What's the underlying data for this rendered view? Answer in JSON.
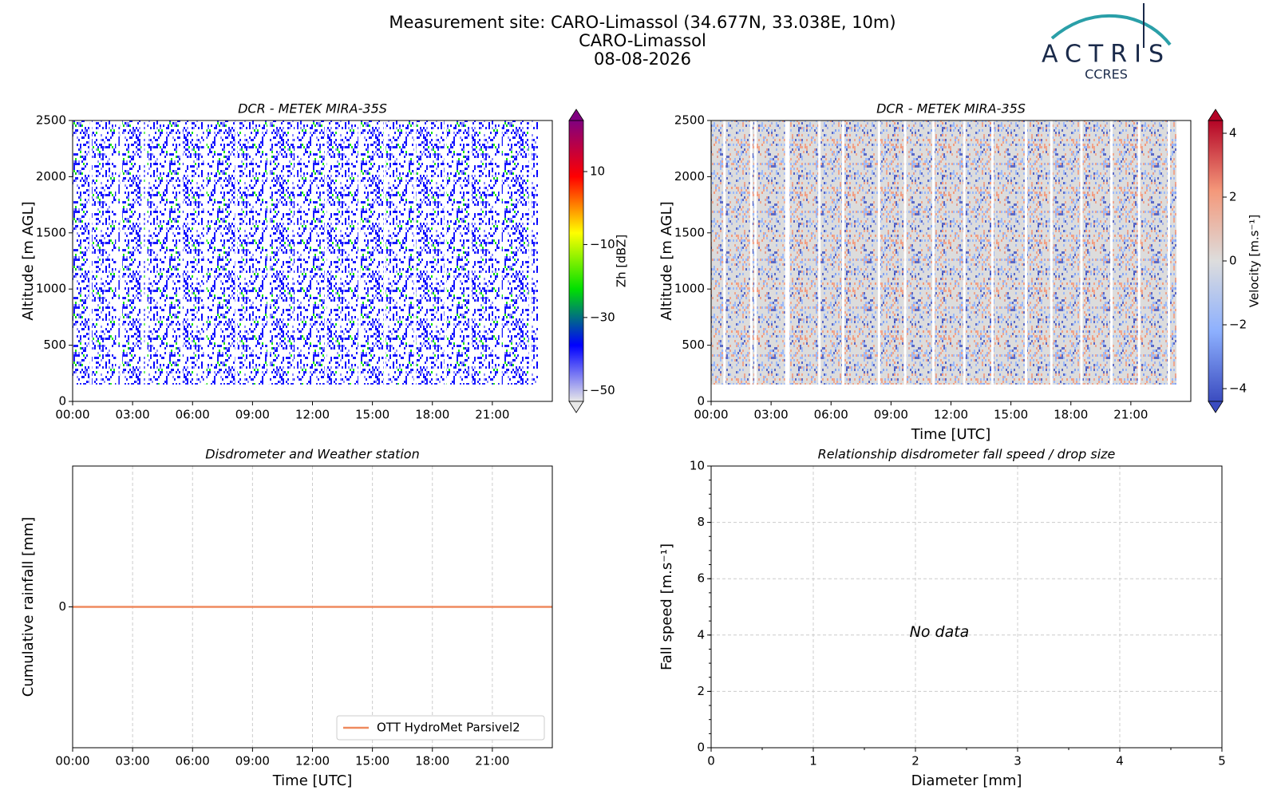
{
  "header": {
    "title_lines": [
      "Measurement site: CARO-Limassol (34.677N, 33.038E, 10m)",
      "CARO-Limassol",
      "08-08-2026"
    ],
    "logo": {
      "name": "ACTRIS",
      "subtitle": "CCRES"
    }
  },
  "chart_data": [
    {
      "type": "heatmap",
      "title": "DCR - METEK MIRA-35S",
      "ylabel": "Altitude [m AGL]",
      "xlim": [
        0,
        24
      ],
      "xticks": [
        {
          "value": 0,
          "label": "00:00"
        },
        {
          "value": 3,
          "label": "03:00"
        },
        {
          "value": 6,
          "label": "06:00"
        },
        {
          "value": 9,
          "label": "09:00"
        },
        {
          "value": 12,
          "label": "12:00"
        },
        {
          "value": 15,
          "label": "15:00"
        },
        {
          "value": 18,
          "label": "18:00"
        },
        {
          "value": 21,
          "label": "21:00"
        }
      ],
      "ylim": [
        0,
        2500
      ],
      "yticks": [
        0,
        500,
        1000,
        1500,
        2000,
        2500
      ],
      "colorbar": {
        "label": "Zh [dBZ]",
        "lim": [
          -53,
          24
        ],
        "ticks": [
          {
            "value": -50,
            "label": "−50"
          },
          {
            "value": -30,
            "label": "−30"
          },
          {
            "value": -10,
            "label": "−10"
          },
          10
        ],
        "colormap": [
          "#e8e8e8",
          "#0000ff",
          "#00e000",
          "#ffff00",
          "#ff0000",
          "#800080"
        ]
      }
    },
    {
      "type": "heatmap",
      "title": "DCR - METEK MIRA-35S",
      "ylabel": "Altitude [m AGL]",
      "xlabel": "Time [UTC]",
      "xlim": [
        0,
        24
      ],
      "xticks": [
        {
          "value": 0,
          "label": "00:00"
        },
        {
          "value": 3,
          "label": "03:00"
        },
        {
          "value": 6,
          "label": "06:00"
        },
        {
          "value": 9,
          "label": "09:00"
        },
        {
          "value": 12,
          "label": "12:00"
        },
        {
          "value": 15,
          "label": "15:00"
        },
        {
          "value": 18,
          "label": "18:00"
        },
        {
          "value": 21,
          "label": "21:00"
        }
      ],
      "ylim": [
        0,
        2500
      ],
      "yticks": [
        0,
        500,
        1000,
        1500,
        2000,
        2500
      ],
      "colorbar": {
        "label": "Velocity [m.s⁻¹]",
        "lim": [
          -4.4,
          4.4
        ],
        "ticks": [
          {
            "value": -4,
            "label": "−4"
          },
          {
            "value": -2,
            "label": "−2"
          },
          0,
          2,
          4
        ],
        "colormap": [
          "#3b4cc0",
          "#8db0fe",
          "#dddddd",
          "#f4987a",
          "#b40426"
        ]
      }
    },
    {
      "type": "line",
      "title": "Disdrometer and Weather station",
      "ylabel": "Cumulative rainfall [mm]",
      "xlabel": "Time [UTC]",
      "xlim": [
        0,
        24
      ],
      "xticks": [
        {
          "value": 0,
          "label": "00:00"
        },
        {
          "value": 3,
          "label": "03:00"
        },
        {
          "value": 6,
          "label": "06:00"
        },
        {
          "value": 9,
          "label": "09:00"
        },
        {
          "value": 12,
          "label": "12:00"
        },
        {
          "value": 15,
          "label": "15:00"
        },
        {
          "value": 18,
          "label": "18:00"
        },
        {
          "value": 21,
          "label": "21:00"
        }
      ],
      "ylim": [
        -1,
        1
      ],
      "yticks": [
        0
      ],
      "grid": true,
      "legend": "lower right",
      "series": [
        {
          "name": "OTT HydroMet Parsivel2",
          "color": "#ef8a5e",
          "x": [
            0,
            24
          ],
          "values": [
            0,
            0
          ]
        }
      ]
    },
    {
      "type": "scatter",
      "title": "Relationship disdrometer fall speed / drop size",
      "ylabel": "Fall speed [m.s⁻¹]",
      "xlabel": "Diameter [mm]",
      "xlim": [
        0,
        5
      ],
      "xticks": [
        0,
        1,
        2,
        3,
        4,
        5
      ],
      "ylim": [
        0,
        10
      ],
      "yticks": [
        0,
        2,
        4,
        6,
        8,
        10
      ],
      "grid": true,
      "annotation": "No data",
      "x": [],
      "values": []
    }
  ]
}
